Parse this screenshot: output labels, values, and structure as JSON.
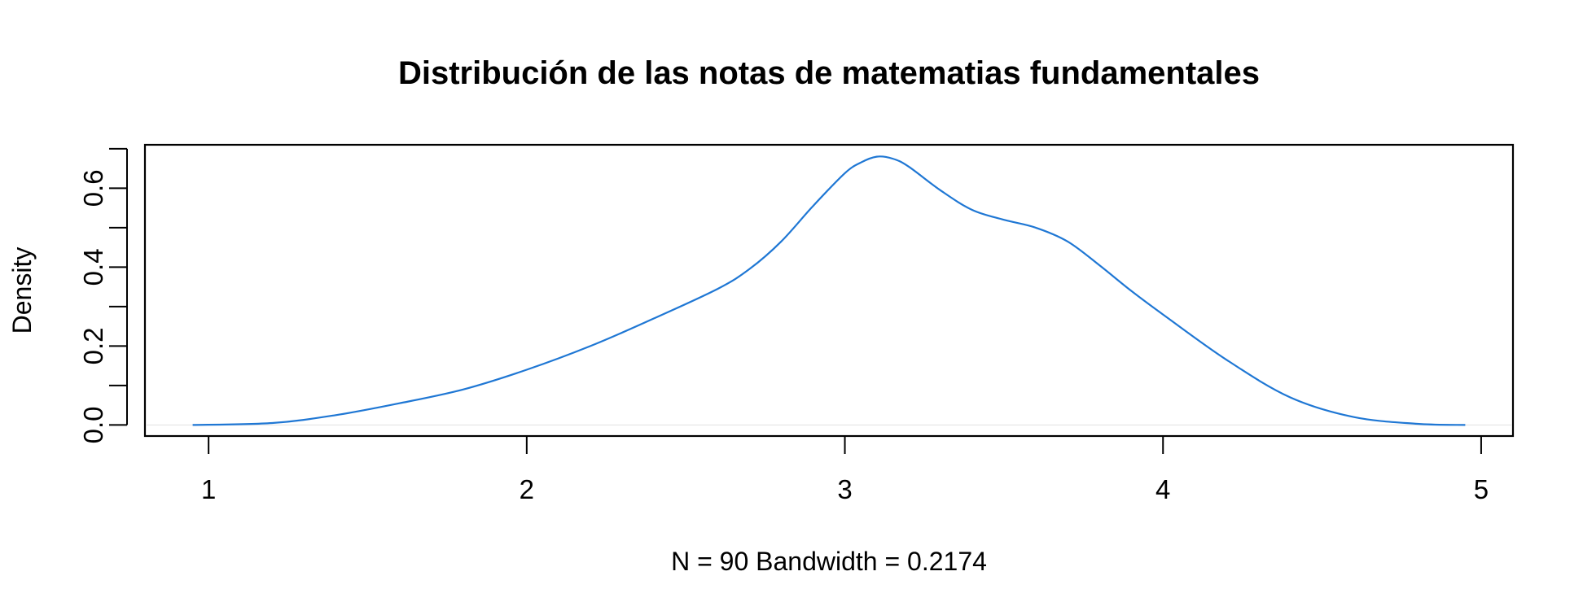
{
  "chart_data": {
    "type": "line",
    "title": "Distribución de las notas de matematias fundamentales",
    "xlabel": "N = 90   Bandwidth = 0.2174",
    "ylabel": "Density",
    "xlim": [
      0.8,
      5.1
    ],
    "ylim": [
      -0.028,
      0.71
    ],
    "x_ticks": [
      1,
      2,
      3,
      4,
      5
    ],
    "x_tick_labels": [
      "1",
      "2",
      "3",
      "4",
      "5"
    ],
    "y_ticks": [
      0.0,
      0.1,
      0.2,
      0.3,
      0.4,
      0.5,
      0.6,
      0.7
    ],
    "y_tick_labels": [
      "0.0",
      "0.2",
      "0.4",
      "0.6"
    ],
    "y_tick_labels_at": [
      0.0,
      0.2,
      0.4,
      0.6
    ],
    "grid": false,
    "zero_line": true,
    "series": [
      {
        "color": "#1f77d4",
        "x": [
          0.95,
          1.2,
          1.4,
          1.6,
          1.8,
          2.0,
          2.2,
          2.4,
          2.6,
          2.7,
          2.8,
          2.9,
          3.0,
          3.05,
          3.1,
          3.15,
          3.2,
          3.3,
          3.4,
          3.5,
          3.6,
          3.7,
          3.8,
          3.9,
          4.0,
          4.2,
          4.4,
          4.6,
          4.8,
          4.95
        ],
        "y": [
          0.0,
          0.005,
          0.025,
          0.055,
          0.09,
          0.14,
          0.2,
          0.27,
          0.345,
          0.395,
          0.465,
          0.555,
          0.638,
          0.665,
          0.68,
          0.675,
          0.655,
          0.595,
          0.545,
          0.52,
          0.5,
          0.465,
          0.405,
          0.34,
          0.28,
          0.165,
          0.07,
          0.02,
          0.003,
          0.0
        ]
      }
    ]
  }
}
